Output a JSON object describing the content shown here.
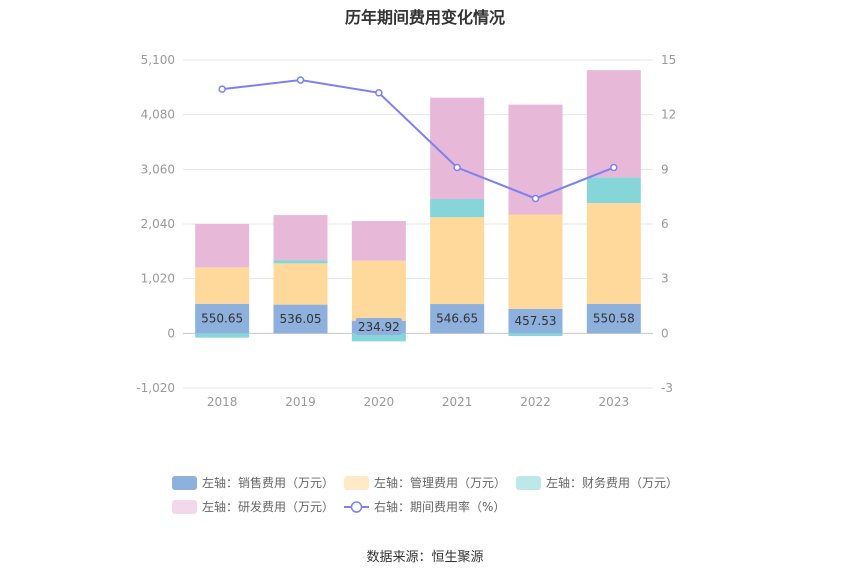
{
  "chart_data": {
    "type": "bar",
    "title": "历年期间费用变化情况",
    "categories": [
      "2018",
      "2019",
      "2020",
      "2021",
      "2022",
      "2023"
    ],
    "series": [
      {
        "name": "左轴：销售费用（万元）",
        "axis": "left",
        "color": "#8eb0dc",
        "values": [
          550.65,
          536.05,
          234.92,
          546.65,
          457.53,
          550.58
        ],
        "labels": [
          "550.65",
          "536.05",
          "234.92",
          "546.65",
          "457.53",
          "550.58"
        ]
      },
      {
        "name": "左轴：管理费用（万元）",
        "axis": "left",
        "color": "#ffd89b",
        "values": [
          680,
          770,
          1120,
          1620,
          1760,
          1880
        ]
      },
      {
        "name": "左轴：财务费用（万元）",
        "axis": "left",
        "color": "#86d6d9",
        "values": [
          -80,
          60,
          -150,
          340,
          -50,
          480
        ]
      },
      {
        "name": "左轴：研发费用（万元）",
        "axis": "left",
        "color": "#e8b8d9",
        "values": [
          810,
          840,
          740,
          1890,
          2050,
          2000
        ]
      },
      {
        "name": "右轴：期间费用率（%）",
        "axis": "right",
        "type": "line",
        "color": "#7b82f0",
        "values": [
          13.4,
          13.9,
          13.2,
          9.1,
          7.4,
          9.1
        ]
      }
    ],
    "left_axis": {
      "min": -1020,
      "max": 5100,
      "ticks": [
        "-1,020",
        "0",
        "1,020",
        "2,040",
        "3,060",
        "4,080",
        "5,100"
      ]
    },
    "right_axis": {
      "min": -3,
      "max": 15,
      "ticks": [
        "-3",
        "0",
        "3",
        "6",
        "9",
        "12",
        "15"
      ]
    },
    "grid": true,
    "legend_position": "bottom"
  },
  "source": "数据来源：恒生聚源"
}
